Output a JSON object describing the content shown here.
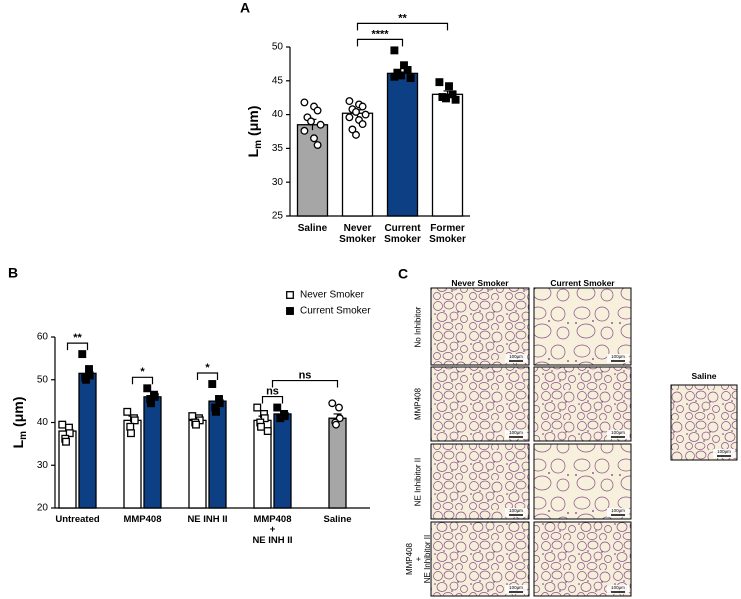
{
  "chart_data": [
    {
      "type": "bar",
      "panel": "A",
      "y_label": {
        "main": "L",
        "sub": "m",
        "unit": "(μm)"
      },
      "categories": [
        "Saline",
        "Never\nSmoker",
        "Current\nSmoker",
        "Former\nSmoker"
      ],
      "values": [
        38.5,
        40.2,
        46.1,
        43.0
      ],
      "errors": [
        0.8,
        0.5,
        0.5,
        0.5
      ],
      "colors": [
        "#a6a6a6",
        "#ffffff",
        "#0d3f84",
        "#ffffff"
      ],
      "markers": [
        "circle-open",
        "circle-open",
        "square-filled",
        "square-filled"
      ],
      "points": [
        [
          41.8,
          41.2,
          40.6,
          39.6,
          39.0,
          38.5,
          37.6,
          36.5,
          35.5
        ],
        [
          42.0,
          41.5,
          41.2,
          40.8,
          40.4,
          40.0,
          39.6,
          39.2,
          38.6,
          37.8,
          37.0
        ],
        [
          49.5,
          47.3,
          46.6,
          46.2,
          45.8,
          45.4,
          45.6
        ],
        [
          44.8,
          44.2,
          43.0,
          42.6,
          42.4,
          42.2
        ]
      ],
      "ylim": [
        25,
        50
      ],
      "yticks": [
        25,
        30,
        35,
        40,
        45,
        50
      ],
      "annotations": [
        {
          "text": "****",
          "from": "Never\nSmoker",
          "to": "Current\nSmoker"
        },
        {
          "text": "**",
          "from": "Never\nSmoker",
          "to": "Former\nSmoker"
        }
      ]
    },
    {
      "type": "bar",
      "panel": "B",
      "y_label": {
        "main": "L",
        "sub": "m",
        "unit": "(μm)"
      },
      "categories": [
        "Untreated",
        "MMP408",
        "NE INH II",
        "MMP408\n+\nNE INH II",
        "Saline"
      ],
      "series": [
        {
          "name": "Never Smoker",
          "color": "#ffffff",
          "marker": "square-open",
          "values": [
            38.0,
            40.5,
            40.5,
            40.5,
            null
          ],
          "errors": [
            1.0,
            1.0,
            0.5,
            1.0,
            null
          ],
          "points": [
            [
              39.5,
              38.8,
              37.5,
              36.2,
              35.5
            ],
            [
              42.5,
              41.0,
              40.5,
              39.0,
              37.5
            ],
            [
              41.5,
              41.0,
              40.5,
              40.0,
              39.5
            ],
            [
              43.5,
              42.0,
              41.0,
              40.0,
              39.0,
              38.0
            ],
            null
          ]
        },
        {
          "name": "Current Smoker",
          "color": "#0d3f84",
          "marker": "square-filled",
          "values": [
            51.5,
            46.0,
            45.0,
            42.0,
            null
          ],
          "errors": [
            1.0,
            0.8,
            1.2,
            0.5,
            null
          ],
          "points": [
            [
              56.0,
              52.5,
              51.0,
              50.5,
              50.0
            ],
            [
              48.0,
              46.5,
              46.0,
              45.5,
              44.5
            ],
            [
              49.0,
              45.5,
              44.5,
              43.5,
              42.5
            ],
            [
              43.5,
              42.0,
              41.5,
              41.0
            ],
            null
          ]
        },
        {
          "name": "Saline",
          "color": "#a6a6a6",
          "marker": "circle-open",
          "legend": false,
          "values": [
            null,
            null,
            null,
            null,
            41.0
          ],
          "errors": [
            null,
            null,
            null,
            null,
            1.0
          ],
          "points": [
            null,
            null,
            null,
            null,
            [
              44.5,
              43.5,
              41.0,
              40.0,
              39.5
            ]
          ]
        }
      ],
      "ylim": [
        20,
        60
      ],
      "yticks": [
        20,
        30,
        40,
        50,
        60
      ],
      "legend": "top-right",
      "annotations": [
        {
          "text": "**",
          "from": [
            "Untreated",
            "Never Smoker"
          ],
          "to": [
            "Untreated",
            "Current Smoker"
          ]
        },
        {
          "text": "*",
          "from": [
            "MMP408",
            "Never Smoker"
          ],
          "to": [
            "MMP408",
            "Current Smoker"
          ]
        },
        {
          "text": "*",
          "from": [
            "NE INH II",
            "Never Smoker"
          ],
          "to": [
            "NE INH II",
            "Current Smoker"
          ]
        },
        {
          "text": "ns",
          "from": [
            "MMP408\n+\nNE INH II",
            "Never Smoker"
          ],
          "to": [
            "MMP408\n+\nNE INH II",
            "Current Smoker"
          ]
        },
        {
          "text": "ns",
          "from": [
            "MMP408\n+\nNE INH II",
            null
          ],
          "to": [
            "Saline",
            "Saline"
          ]
        }
      ]
    }
  ],
  "panel_c": {
    "label": "C",
    "columns": [
      "Never Smoker",
      "Current Smoker"
    ],
    "rows": [
      "No Inhibitor",
      "MMP408",
      "NE Inhibitor II",
      "MMP408\n+\nNE Inhibitor II"
    ],
    "saline": "Saline",
    "scale_bar": "100μm"
  }
}
